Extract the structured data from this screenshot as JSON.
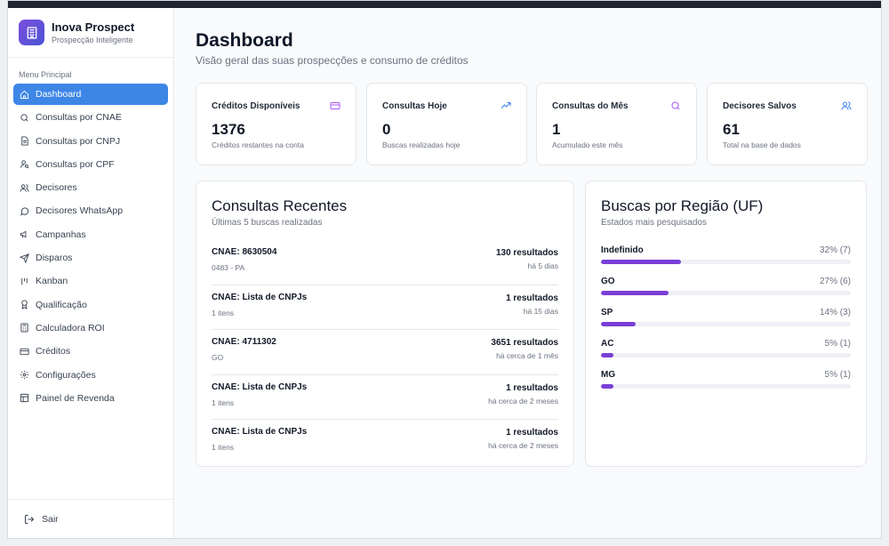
{
  "brand": {
    "name": "Inova Prospect",
    "tagline": "Prospecção Inteligente"
  },
  "sidebar": {
    "menu_title": "Menu Principal",
    "items": [
      {
        "label": "Dashboard",
        "icon": "home-icon",
        "active": true
      },
      {
        "label": "Consultas por CNAE",
        "icon": "search-icon"
      },
      {
        "label": "Consultas por CNPJ",
        "icon": "document-icon"
      },
      {
        "label": "Consultas por CPF",
        "icon": "user-search-icon"
      },
      {
        "label": "Decisores",
        "icon": "users-icon"
      },
      {
        "label": "Decisores WhatsApp",
        "icon": "chat-bubble-icon"
      },
      {
        "label": "Campanhas",
        "icon": "megaphone-icon"
      },
      {
        "label": "Disparos",
        "icon": "send-icon"
      },
      {
        "label": "Kanban",
        "icon": "kanban-icon"
      },
      {
        "label": "Qualificação",
        "icon": "award-icon"
      },
      {
        "label": "Calculadora ROI",
        "icon": "calculator-icon"
      },
      {
        "label": "Créditos",
        "icon": "credit-card-icon"
      },
      {
        "label": "Configurações",
        "icon": "gear-icon"
      },
      {
        "label": "Painel de Revenda",
        "icon": "layout-panel-icon"
      }
    ],
    "logout_label": "Sair"
  },
  "header": {
    "title": "Dashboard",
    "subtitle": "Visão geral das suas prospecções e consumo de créditos"
  },
  "stats": [
    {
      "label": "Créditos Disponíveis",
      "value": "1376",
      "desc": "Créditos restantes na conta",
      "icon": "credit-card-icon",
      "color": "#a855f7"
    },
    {
      "label": "Consultas Hoje",
      "value": "0",
      "desc": "Buscas realizadas hoje",
      "icon": "trending-up-icon",
      "color": "#3b82f6"
    },
    {
      "label": "Consultas do Mês",
      "value": "1",
      "desc": "Acumulado este mês",
      "icon": "search-icon",
      "color": "#a855f7"
    },
    {
      "label": "Decisores Salvos",
      "value": "61",
      "desc": "Total na base de dados",
      "icon": "users-icon",
      "color": "#3b82f6"
    }
  ],
  "recent": {
    "title": "Consultas Recentes",
    "subtitle": "Últimas 5 buscas realizadas",
    "rows": [
      {
        "title": "CNAE: 8630504",
        "sub": "0483 - PA",
        "count": "130 resultados",
        "time": "há 5 dias"
      },
      {
        "title": "CNAE: Lista de CNPJs",
        "sub": "1 itens",
        "count": "1 resultados",
        "time": "há 15 dias"
      },
      {
        "title": "CNAE: 4711302",
        "sub": "GO",
        "count": "3651 resultados",
        "time": "há cerca de 1 mês"
      },
      {
        "title": "CNAE: Lista de CNPJs",
        "sub": "1 itens",
        "count": "1 resultados",
        "time": "há cerca de 2 meses"
      },
      {
        "title": "CNAE: Lista de CNPJs",
        "sub": "1 itens",
        "count": "1 resultados",
        "time": "há cerca de 2 meses"
      }
    ]
  },
  "regions": {
    "title": "Buscas por Região (UF)",
    "subtitle": "Estados mais pesquisados",
    "bar_color": "#7a3fd6",
    "rows": [
      {
        "name": "Indefinido",
        "value": "32% (7)",
        "pct": 32
      },
      {
        "name": "GO",
        "value": "27% (6)",
        "pct": 27
      },
      {
        "name": "SP",
        "value": "14% (3)",
        "pct": 14
      },
      {
        "name": "AC",
        "value": "5% (1)",
        "pct": 5
      },
      {
        "name": "MG",
        "value": "5% (1)",
        "pct": 5
      }
    ]
  }
}
